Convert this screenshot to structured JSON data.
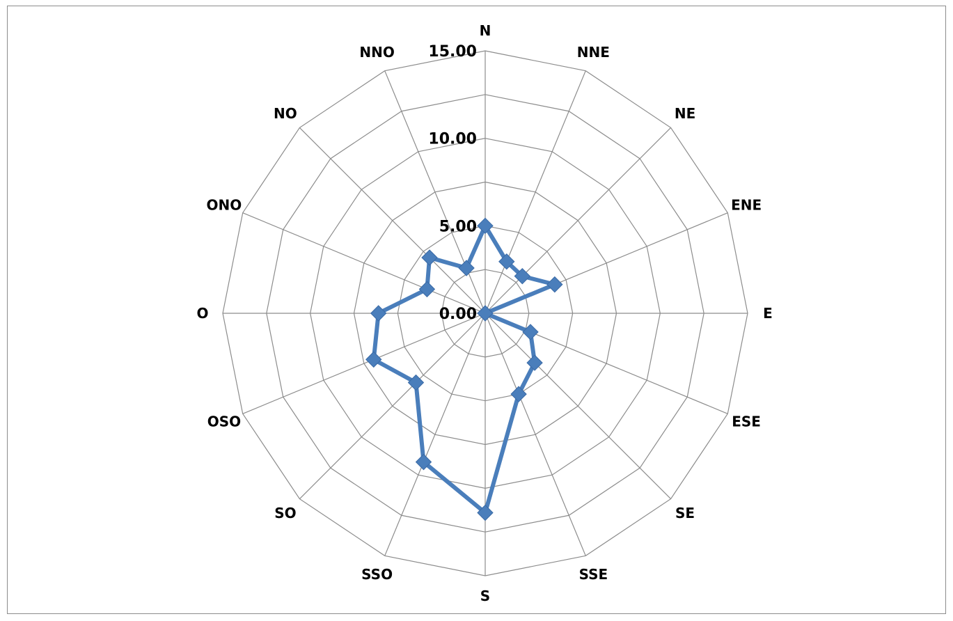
{
  "chart_data": {
    "type": "radar",
    "title": "",
    "categories": [
      "N",
      "NNE",
      "NE",
      "ENE",
      "E",
      "ESE",
      "SE",
      "SSE",
      "S",
      "SSO",
      "SO",
      "OSO",
      "O",
      "ONO",
      "NO",
      "NNO"
    ],
    "series": [
      {
        "name": "",
        "values": [
          5.0,
          3.2,
          3.0,
          4.3,
          0.0,
          2.8,
          4.0,
          5.0,
          11.4,
          9.2,
          5.6,
          6.9,
          6.1,
          3.6,
          4.5,
          2.8
        ],
        "color": "#4a7ebb"
      }
    ],
    "r_ticks": [
      0,
      5,
      10,
      15
    ],
    "r_tick_labels": [
      "0.00",
      "5.00",
      "10.00",
      "15.00"
    ],
    "r_range": [
      0,
      15
    ],
    "grid": true,
    "legend": "none"
  }
}
